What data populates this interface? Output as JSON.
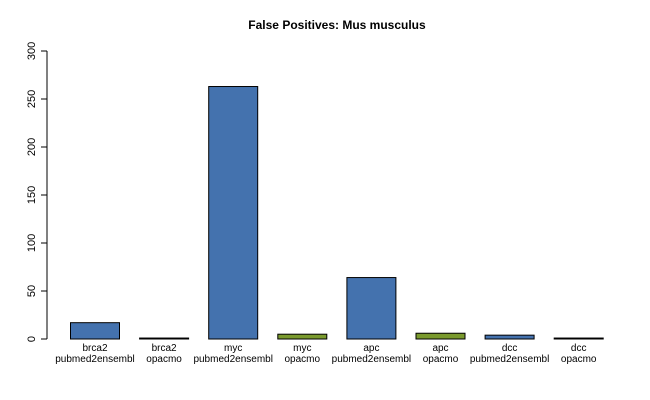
{
  "chart_data": {
    "type": "bar",
    "title": "False Positives: Mus musculus",
    "xlabel": "",
    "ylabel": "",
    "ylim": [
      0,
      300
    ],
    "yticks": [
      0,
      50,
      100,
      150,
      200,
      250,
      300
    ],
    "grid": false,
    "categories": [
      {
        "gene": "brca2",
        "source": "pubmed2ensembl"
      },
      {
        "gene": "brca2",
        "source": "opacmo"
      },
      {
        "gene": "myc",
        "source": "pubmed2ensembl"
      },
      {
        "gene": "myc",
        "source": "opacmo"
      },
      {
        "gene": "apc",
        "source": "pubmed2ensembl"
      },
      {
        "gene": "apc",
        "source": "opacmo"
      },
      {
        "gene": "dcc",
        "source": "pubmed2ensembl"
      },
      {
        "gene": "dcc",
        "source": "opacmo"
      }
    ],
    "values": [
      17,
      1,
      263,
      5,
      64,
      6,
      4,
      1
    ],
    "colors": [
      "#4472AE",
      "#4472AE",
      "#4472AE",
      "#7A9A2D",
      "#4472AE",
      "#7A9A2D",
      "#4472AE",
      "#7A9A2D"
    ]
  }
}
